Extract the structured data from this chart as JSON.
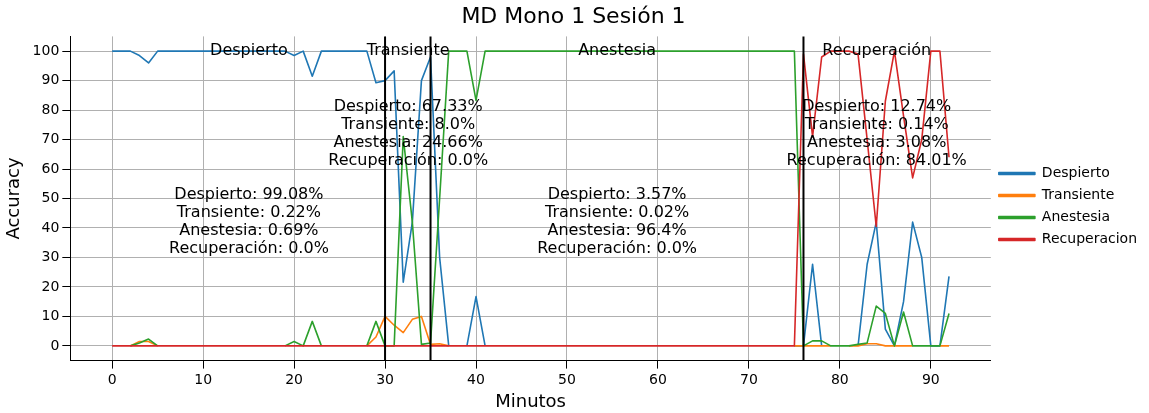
{
  "chart_data": {
    "type": "line",
    "title": "MD Mono 1 Sesión 1",
    "xlabel": "Minutos",
    "ylabel": "Accuracy",
    "x": [
      0,
      1,
      2,
      3,
      4,
      5,
      6,
      7,
      8,
      9,
      10,
      11,
      12,
      13,
      14,
      15,
      16,
      17,
      18,
      19,
      20,
      21,
      22,
      23,
      24,
      25,
      26,
      27,
      28,
      29,
      30,
      31,
      32,
      33,
      34,
      35,
      36,
      37,
      38,
      39,
      40,
      41,
      42,
      43,
      44,
      45,
      46,
      47,
      48,
      49,
      50,
      51,
      52,
      53,
      54,
      55,
      56,
      57,
      58,
      59,
      60,
      61,
      62,
      63,
      64,
      65,
      66,
      67,
      68,
      69,
      70,
      71,
      72,
      73,
      74,
      75,
      76,
      77,
      78,
      79,
      80,
      81,
      82,
      83,
      84,
      85,
      86,
      87,
      88,
      89,
      90,
      91,
      92
    ],
    "series": [
      {
        "name": "Despierto",
        "color": "#1f77b4",
        "values": [
          100,
          100,
          100,
          98.5,
          96,
          100,
          100,
          100,
          100,
          100,
          100,
          100,
          100,
          100,
          100,
          100,
          100,
          100,
          100,
          100,
          98.5,
          100,
          91.5,
          100,
          100,
          100,
          100,
          100,
          100,
          89.3,
          90,
          93.3,
          21.6,
          42,
          90,
          98,
          30,
          0,
          null,
          0,
          16.7,
          0,
          null,
          null,
          null,
          null,
          null,
          null,
          null,
          null,
          null,
          null,
          null,
          null,
          null,
          null,
          null,
          null,
          null,
          null,
          null,
          null,
          null,
          null,
          null,
          null,
          null,
          null,
          null,
          null,
          null,
          null,
          null,
          null,
          null,
          0,
          0,
          27.7,
          0,
          null,
          null,
          null,
          0,
          27.7,
          42,
          5.7,
          0,
          15,
          42,
          30,
          0,
          0,
          23.6
        ]
      },
      {
        "name": "Transiente",
        "color": "#ff7f0e",
        "values": [
          null,
          null,
          0,
          1.5,
          1.5,
          0,
          null,
          null,
          null,
          null,
          null,
          null,
          null,
          null,
          null,
          null,
          null,
          null,
          null,
          null,
          null,
          null,
          null,
          null,
          null,
          null,
          null,
          null,
          0,
          3,
          10,
          7,
          4.5,
          9,
          10,
          0.5,
          0.7,
          0,
          null,
          null,
          null,
          null,
          null,
          null,
          null,
          null,
          null,
          null,
          null,
          null,
          null,
          null,
          null,
          null,
          null,
          null,
          null,
          null,
          null,
          null,
          null,
          null,
          null,
          null,
          null,
          null,
          null,
          null,
          null,
          null,
          null,
          null,
          null,
          null,
          null,
          0,
          0,
          0,
          0,
          0,
          null,
          0,
          0,
          0.7,
          0.7,
          0,
          0,
          0,
          0,
          null,
          null,
          0,
          0
        ]
      },
      {
        "name": "Anestesia",
        "color": "#2ca02c",
        "values": [
          null,
          null,
          0,
          1,
          2.3,
          0,
          null,
          null,
          null,
          null,
          null,
          null,
          null,
          null,
          null,
          null,
          null,
          null,
          null,
          0,
          1.5,
          0,
          8.3,
          0,
          null,
          null,
          null,
          null,
          0,
          8.3,
          0,
          0,
          71,
          42,
          0.5,
          1,
          50,
          100,
          100,
          100,
          83.3,
          100,
          100,
          100,
          100,
          100,
          100,
          100,
          100,
          100,
          100,
          100,
          100,
          100,
          100,
          100,
          100,
          100,
          100,
          100,
          100,
          100,
          100,
          100,
          100,
          100,
          100,
          100,
          100,
          100,
          100,
          100,
          100,
          100,
          100,
          100,
          0,
          1.7,
          1.7,
          0,
          0,
          0,
          0.5,
          1,
          13.5,
          11,
          0,
          11.5,
          0,
          0,
          0,
          0,
          11
        ]
      },
      {
        "name": "Recuperacion",
        "color": "#d62728",
        "values": [
          0,
          0,
          0,
          0,
          0,
          0,
          0,
          0,
          0,
          0,
          0,
          0,
          0,
          0,
          0,
          0,
          0,
          0,
          0,
          0,
          0,
          0,
          0,
          0,
          0,
          0,
          0,
          0,
          0,
          0,
          0,
          0,
          0,
          0,
          0,
          0,
          0,
          0,
          0,
          0,
          0,
          0,
          0,
          0,
          0,
          0,
          0,
          0,
          0,
          0,
          0,
          0,
          0,
          0,
          0,
          0,
          0,
          0,
          0,
          0,
          0,
          0,
          0,
          0,
          0,
          0,
          0,
          0,
          0,
          0,
          0,
          0,
          0,
          0,
          0,
          0,
          99,
          71,
          98,
          100,
          100,
          100,
          99,
          70,
          40.5,
          83,
          100,
          78,
          57,
          70,
          100,
          100,
          64
        ]
      }
    ],
    "xlim": [
      -4.6,
      96.6
    ],
    "xticks": [
      0,
      10,
      20,
      30,
      40,
      50,
      60,
      70,
      80,
      90
    ],
    "ylim": [
      -5,
      105
    ],
    "yticks": [
      0,
      10,
      20,
      30,
      40,
      50,
      60,
      70,
      80,
      90,
      100
    ],
    "ref_lines": [
      {
        "axis": "x",
        "value": 30,
        "color": "#000000"
      },
      {
        "axis": "x",
        "value": 35,
        "color": "#000000"
      },
      {
        "axis": "x",
        "value": 76,
        "color": "#000000"
      }
    ],
    "annotations": [
      "Despierto",
      "Transiente",
      "Anestesia",
      "Recuperación",
      "Despierto: 99.08%\nTransiente: 0.22%\nAnestesia: 0.69%\nRecuperación: 0.0%",
      "Despierto: 67.33%\nTransiente: 8.0%\nAnestesia: 24.66%\nRecuperación: 0.0%",
      "Despierto: 3.57%\nTransiente: 0.02%\nAnestesia: 96.4%\nRecuperación: 0.0%",
      "Despierto: 12.74%\nTransiente: 0.14%\nAnestesia: 3.08%\nRecuperación: 84.01%"
    ],
    "grid": true,
    "legend": "right",
    "marker": "none",
    "line_style": "solid"
  }
}
